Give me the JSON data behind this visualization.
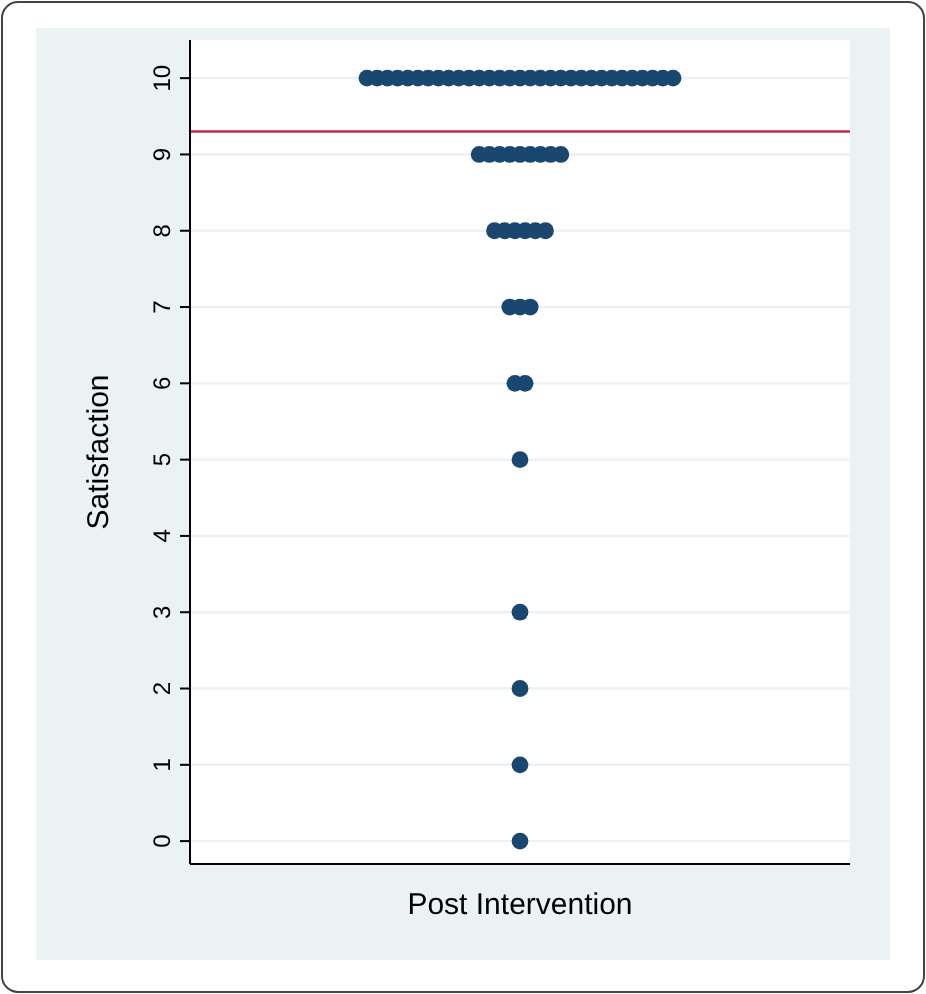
{
  "chart_data": {
    "type": "scatter",
    "ylabel": "Satisfaction",
    "categories": [
      "Post Intervention"
    ],
    "ylim": [
      -0.3,
      10.5
    ],
    "yticks": [
      0,
      1,
      2,
      3,
      4,
      5,
      6,
      7,
      8,
      9,
      10
    ],
    "grid": "y",
    "marker": "circle",
    "ref_lines": [
      {
        "axis": "y",
        "value": 9.3,
        "color": "#c0284c"
      }
    ],
    "series": [
      {
        "color": "#1a476f",
        "x": [
          "Post Intervention",
          "Post Intervention",
          "Post Intervention",
          "Post Intervention",
          "Post Intervention",
          "Post Intervention",
          "Post Intervention",
          "Post Intervention",
          "Post Intervention",
          "Post Intervention",
          "Post Intervention",
          "Post Intervention",
          "Post Intervention",
          "Post Intervention",
          "Post Intervention",
          "Post Intervention",
          "Post Intervention",
          "Post Intervention",
          "Post Intervention",
          "Post Intervention",
          "Post Intervention",
          "Post Intervention",
          "Post Intervention",
          "Post Intervention",
          "Post Intervention",
          "Post Intervention",
          "Post Intervention",
          "Post Intervention",
          "Post Intervention",
          "Post Intervention",
          "Post Intervention",
          "Post Intervention",
          "Post Intervention",
          "Post Intervention",
          "Post Intervention",
          "Post Intervention",
          "Post Intervention",
          "Post Intervention",
          "Post Intervention",
          "Post Intervention",
          "Post Intervention",
          "Post Intervention",
          "Post Intervention",
          "Post Intervention",
          "Post Intervention",
          "Post Intervention",
          "Post Intervention",
          "Post Intervention",
          "Post Intervention",
          "Post Intervention",
          "Post Intervention",
          "Post Intervention",
          "Post Intervention",
          "Post Intervention",
          "Post Intervention",
          "Post Intervention"
        ],
        "values": [
          10,
          10,
          10,
          10,
          10,
          10,
          10,
          10,
          10,
          10,
          10,
          10,
          10,
          10,
          10,
          10,
          10,
          10,
          10,
          10,
          10,
          10,
          10,
          10,
          10,
          10,
          10,
          10,
          10,
          10,
          10,
          9,
          9,
          9,
          9,
          9,
          9,
          9,
          9,
          9,
          8,
          8,
          8,
          8,
          8,
          8,
          7,
          7,
          7,
          6,
          6,
          5,
          3,
          2,
          1,
          0
        ]
      }
    ]
  }
}
